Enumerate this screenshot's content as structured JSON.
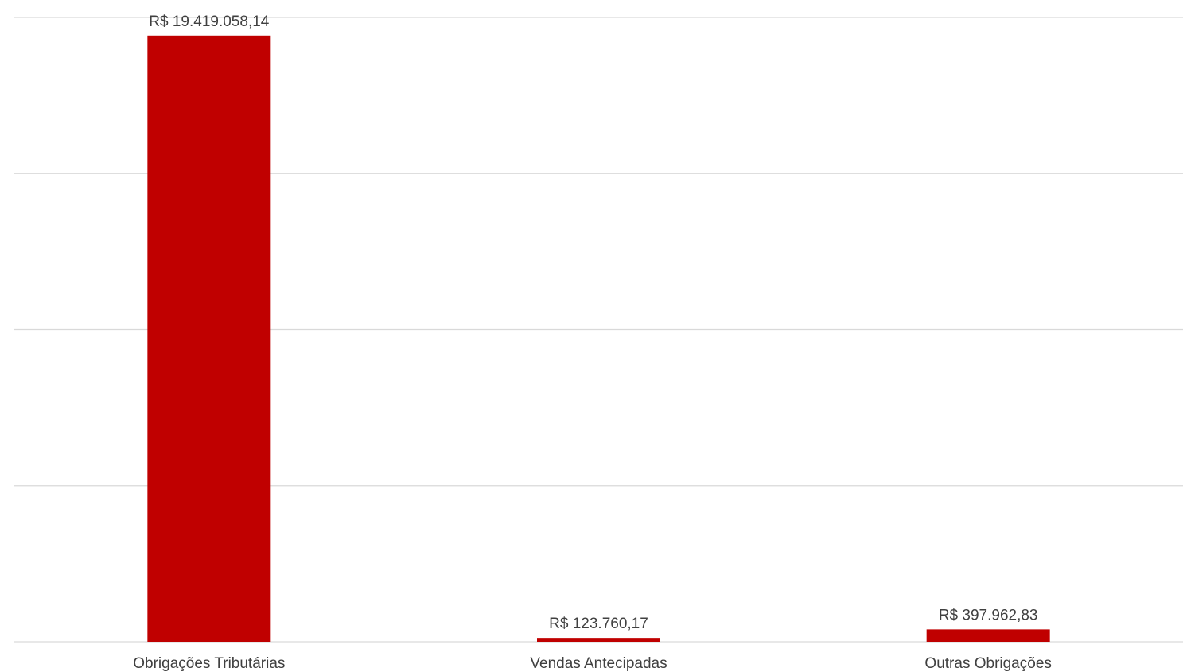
{
  "chart_data": {
    "type": "bar",
    "categories": [
      "Obrigações Tributárias",
      "Vendas Antecipadas",
      "Outras Obrigações"
    ],
    "values": [
      19419058.14,
      123760.17,
      397962.83
    ],
    "data_labels": [
      "R$ 19.419.058,14",
      "R$ 123.760,17",
      "R$ 397.962,83"
    ],
    "bar_color": "#C00000",
    "ylim": [
      0,
      20000000
    ],
    "ytick_step": 5000000,
    "y_tick_labels_shown": false,
    "grid": true,
    "legend": "none"
  }
}
